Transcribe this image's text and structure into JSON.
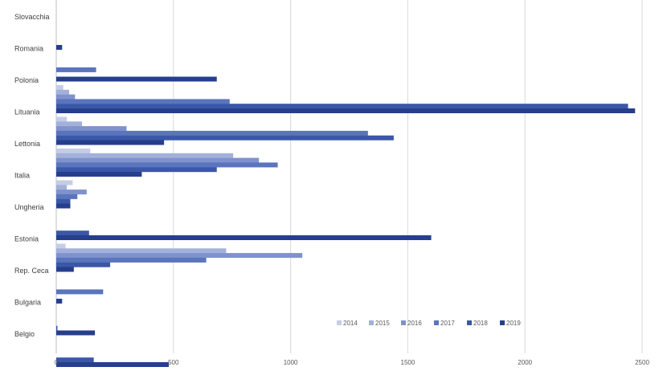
{
  "chart_data": {
    "type": "bar",
    "orientation": "horizontal",
    "title": "",
    "xlabel": "",
    "ylabel": "",
    "xlim": [
      0,
      2500
    ],
    "x_ticks": [
      "0",
      "500",
      "1000",
      "1500",
      "2000",
      "2500"
    ],
    "grid": "vertical",
    "legend_position": "bottom-right",
    "categories": [
      "Slovacchia",
      "Romania",
      "Polonia",
      "Lituania",
      "Lettonia",
      "Italia",
      "Ungheria",
      "Estonia",
      "Rep. Ceca",
      "Bulgaria",
      "Belgio"
    ],
    "series": [
      {
        "name": "2014",
        "color": "#c5cde6",
        "values": [
          0,
          0,
          30,
          45,
          145,
          70,
          0,
          40,
          0,
          0,
          0
        ]
      },
      {
        "name": "2015",
        "color": "#a3b1da",
        "values": [
          0,
          0,
          55,
          110,
          755,
          45,
          0,
          725,
          0,
          0,
          0
        ]
      },
      {
        "name": "2016",
        "color": "#7f92cc",
        "values": [
          0,
          0,
          80,
          300,
          865,
          130,
          0,
          1050,
          0,
          0,
          0
        ]
      },
      {
        "name": "2017",
        "color": "#5a74bd",
        "values": [
          0,
          170,
          740,
          1330,
          945,
          90,
          0,
          640,
          200,
          0,
          0
        ]
      },
      {
        "name": "2018",
        "color": "#3b57a7",
        "values": [
          0,
          0,
          2440,
          1440,
          685,
          60,
          140,
          230,
          0,
          5,
          160
        ]
      },
      {
        "name": "2019",
        "color": "#263f8c",
        "values": [
          25,
          685,
          2470,
          460,
          365,
          60,
          1600,
          75,
          25,
          165,
          480
        ]
      }
    ]
  }
}
